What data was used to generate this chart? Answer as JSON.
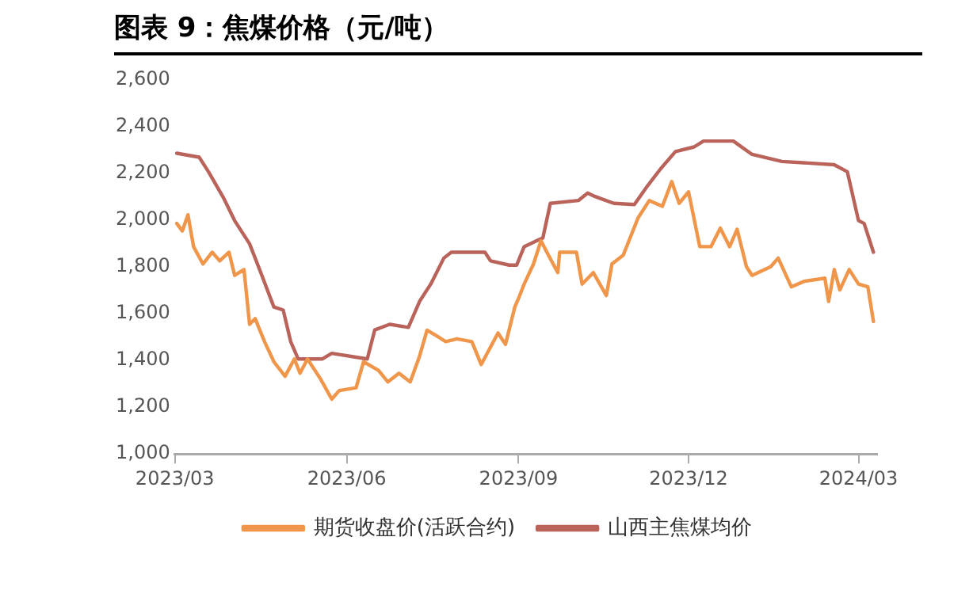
{
  "chart_data": {
    "type": "line",
    "title": "图表 9：焦煤价格（元/吨）",
    "xlim": [
      "2023-03-01",
      "2024-03-11"
    ],
    "xticks": [
      {
        "value": "2023-03-01",
        "label": "2023/03"
      },
      {
        "value": "2023-06-01",
        "label": "2023/06"
      },
      {
        "value": "2023-09-01",
        "label": "2023/09"
      },
      {
        "value": "2023-12-01",
        "label": "2023/12"
      },
      {
        "value": "2024-03-01",
        "label": "2024/03"
      }
    ],
    "ylim": [
      1000,
      2600
    ],
    "yticks": [
      {
        "value": 1000,
        "label": "1,000"
      },
      {
        "value": 1200,
        "label": "1,200"
      },
      {
        "value": 1400,
        "label": "1,400"
      },
      {
        "value": 1600,
        "label": "1,600"
      },
      {
        "value": 1800,
        "label": "1,800"
      },
      {
        "value": 2000,
        "label": "2,000"
      },
      {
        "value": 2200,
        "label": "2,200"
      },
      {
        "value": 2400,
        "label": "2,400"
      },
      {
        "value": 2600,
        "label": "2,600"
      }
    ],
    "grid": false,
    "legend": "bottom",
    "marker": "none",
    "line_style": "solid",
    "series": [
      {
        "name": "期货收盘价(活跃合约)",
        "color": "#f0964a",
        "x": [
          "2023-03-02",
          "2023-03-05",
          "2023-03-08",
          "2023-03-11",
          "2023-03-16",
          "2023-03-21",
          "2023-03-25",
          "2023-03-30",
          "2023-04-02",
          "2023-04-07",
          "2023-04-10",
          "2023-04-13",
          "2023-04-18",
          "2023-04-23",
          "2023-04-29",
          "2023-05-04",
          "2023-05-07",
          "2023-05-11",
          "2023-05-18",
          "2023-05-24",
          "2023-05-28",
          "2023-06-06",
          "2023-06-10",
          "2023-06-18",
          "2023-06-23",
          "2023-06-29",
          "2023-07-05",
          "2023-07-10",
          "2023-07-14",
          "2023-07-19",
          "2023-07-24",
          "2023-07-30",
          "2023-08-07",
          "2023-08-12",
          "2023-08-21",
          "2023-08-25",
          "2023-08-30",
          "2023-09-01",
          "2023-09-04",
          "2023-09-09",
          "2023-09-13",
          "2023-09-17",
          "2023-09-22",
          "2023-09-23",
          "2023-10-02",
          "2023-10-05",
          "2023-10-11",
          "2023-10-18",
          "2023-10-21",
          "2023-10-27",
          "2023-11-04",
          "2023-11-10",
          "2023-11-17",
          "2023-11-22",
          "2023-11-26",
          "2023-12-01",
          "2023-12-07",
          "2023-12-13",
          "2023-12-18",
          "2023-12-23",
          "2023-12-27",
          "2024-01-01",
          "2024-01-04",
          "2024-01-14",
          "2024-01-18",
          "2024-01-25",
          "2024-02-01",
          "2024-02-12",
          "2024-02-14",
          "2024-02-17",
          "2024-02-20",
          "2024-02-25",
          "2024-03-01",
          "2024-03-06",
          "2024-03-09"
        ],
        "values": [
          1985,
          1953,
          2022,
          1886,
          1812,
          1862,
          1825,
          1862,
          1763,
          1788,
          1554,
          1578,
          1480,
          1394,
          1332,
          1406,
          1345,
          1406,
          1320,
          1234,
          1271,
          1283,
          1394,
          1357,
          1308,
          1345,
          1308,
          1418,
          1529,
          1505,
          1480,
          1492,
          1480,
          1382,
          1517,
          1468,
          1628,
          1665,
          1726,
          1812,
          1911,
          1849,
          1775,
          1862,
          1862,
          1726,
          1775,
          1677,
          1812,
          1849,
          2009,
          2083,
          2058,
          2164,
          2071,
          2120,
          1886,
          1886,
          1965,
          1886,
          1960,
          1800,
          1763,
          1800,
          1837,
          1714,
          1738,
          1751,
          1652,
          1788,
          1701,
          1788,
          1726,
          1714,
          1566
        ]
      },
      {
        "name": "山西主焦煤均价",
        "color": "#b9635a",
        "x": [
          "2023-03-02",
          "2023-03-14",
          "2023-03-19",
          "2023-03-27",
          "2023-04-02",
          "2023-04-10",
          "2023-04-16",
          "2023-04-23",
          "2023-04-28",
          "2023-05-02",
          "2023-05-06",
          "2023-05-19",
          "2023-05-24",
          "2023-06-12",
          "2023-06-16",
          "2023-06-24",
          "2023-07-04",
          "2023-07-10",
          "2023-07-16",
          "2023-07-23",
          "2023-07-27",
          "2023-08-14",
          "2023-08-17",
          "2023-08-27",
          "2023-08-31",
          "2023-09-04",
          "2023-09-12",
          "2023-09-14",
          "2023-09-18",
          "2023-10-03",
          "2023-10-08",
          "2023-10-12",
          "2023-10-22",
          "2023-11-02",
          "2023-11-09",
          "2023-11-16",
          "2023-11-24",
          "2023-12-04",
          "2023-12-09",
          "2023-12-25",
          "2024-01-04",
          "2024-01-20",
          "2024-02-17",
          "2024-02-24",
          "2024-03-01",
          "2024-03-04",
          "2024-03-09"
        ],
        "values": [
          2285,
          2268,
          2206,
          2095,
          1997,
          1898,
          1775,
          1628,
          1615,
          1480,
          1406,
          1406,
          1430,
          1406,
          1530,
          1554,
          1541,
          1652,
          1726,
          1837,
          1862,
          1862,
          1825,
          1807,
          1807,
          1886,
          1916,
          1923,
          2071,
          2083,
          2115,
          2100,
          2071,
          2066,
          2145,
          2218,
          2292,
          2312,
          2337,
          2337,
          2280,
          2250,
          2236,
          2206,
          1997,
          1985,
          1862
        ]
      }
    ]
  }
}
